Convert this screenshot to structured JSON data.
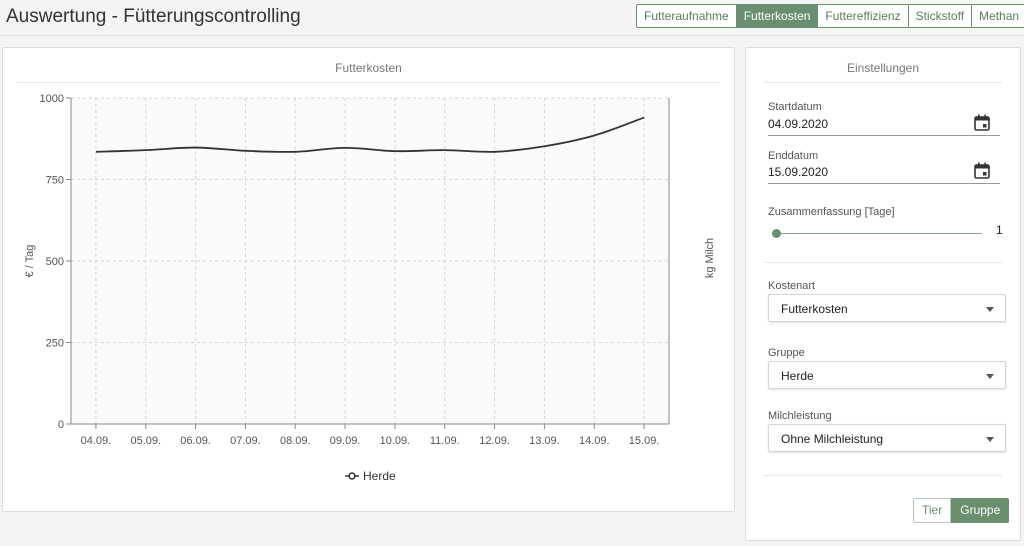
{
  "header": {
    "title": "Auswertung - Fütterungscontrolling",
    "tabs": [
      "Futteraufnahme",
      "Futterkosten",
      "Futtereffizienz",
      "Stickstoff",
      "Methan"
    ],
    "active_tab": "Futterkosten"
  },
  "chart_panel": {
    "title": "Futterkosten"
  },
  "chart_data": {
    "type": "line",
    "categories": [
      "04.09.",
      "05.09.",
      "06.09.",
      "07.09.",
      "08.09.",
      "09.09.",
      "10.09.",
      "11.09.",
      "12.09.",
      "13.09.",
      "14.09.",
      "15.09."
    ],
    "series": [
      {
        "name": "Herde",
        "values": [
          835,
          840,
          848,
          838,
          835,
          847,
          837,
          840,
          835,
          852,
          885,
          940
        ],
        "color": "#333333"
      }
    ],
    "ylabel": "€ / Tag",
    "y2label": "kg Milch",
    "ylim": [
      0,
      1000
    ],
    "yticks": [
      0,
      250,
      500,
      750,
      1000
    ],
    "grid": true,
    "legend_position": "bottom-center"
  },
  "settings": {
    "title": "Einstellungen",
    "start_label": "Startdatum",
    "start_value": "04.09.2020",
    "end_label": "Enddatum",
    "end_value": "15.09.2020",
    "summary_label": "Zusammenfassung [Tage]",
    "summary_value": "1",
    "cost_label": "Kostenart",
    "cost_value": "Futterkosten",
    "group_label": "Gruppe",
    "group_value": "Herde",
    "milk_label": "Milchleistung",
    "milk_value": "Ohne Milchleistung",
    "toggle_tier": "Tier",
    "toggle_gruppe": "Gruppe"
  },
  "colors": {
    "accent": "#6a8f6e",
    "line": "#333333",
    "grid": "#d6d6d6"
  },
  "icons": {
    "date_picker": "calendar-icon",
    "dropdown": "chevron-down-icon",
    "legend_marker": "circle-line-marker-icon"
  }
}
